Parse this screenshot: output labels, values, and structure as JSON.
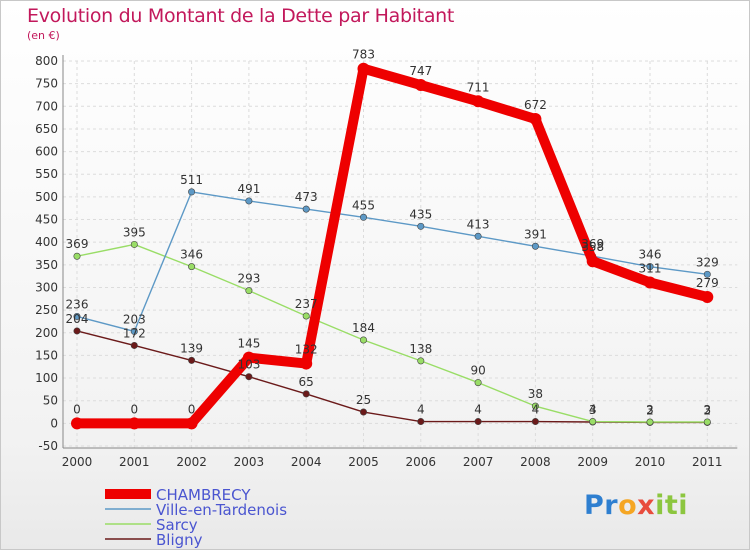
{
  "chart_data": {
    "type": "line",
    "title": "Evolution du Montant de la Dette par Habitant",
    "subtitle": "(en €)",
    "xlabel": "",
    "ylabel": "",
    "ylim": [
      -50,
      800
    ],
    "y_ticks": [
      -50,
      0,
      50,
      100,
      150,
      200,
      250,
      300,
      350,
      400,
      450,
      500,
      550,
      600,
      650,
      700,
      750,
      800
    ],
    "x": [
      "2000",
      "2001",
      "2002",
      "2003",
      "2004",
      "2005",
      "2006",
      "2007",
      "2008",
      "2009",
      "2010",
      "2011"
    ],
    "grid": true,
    "legend_position": "bottom-left",
    "series": [
      {
        "name": "Bligny",
        "color": "#6b1a1a",
        "values": [
          204,
          172,
          139,
          103,
          65,
          25,
          4,
          4,
          4,
          3,
          2,
          2
        ]
      },
      {
        "name": "Sarcy",
        "color": "#99dd66",
        "values": [
          369,
          395,
          346,
          293,
          237,
          184,
          138,
          90,
          38,
          4,
          3,
          3
        ]
      },
      {
        "name": "Ville-en-Tardenois",
        "color": "#5d99c6",
        "values": [
          236,
          203,
          511,
          491,
          473,
          455,
          435,
          413,
          391,
          369,
          346,
          329
        ]
      },
      {
        "name": "CHAMBRECY",
        "color": "#ee0000",
        "values": [
          0,
          0,
          0,
          145,
          132,
          783,
          747,
          711,
          672,
          358,
          311,
          279
        ]
      }
    ],
    "legend_order": [
      "CHAMBRECY",
      "Ville-en-Tardenois",
      "Sarcy",
      "Bligny"
    ]
  },
  "logo": {
    "parts": [
      "Pr",
      "o",
      "x",
      "iti"
    ]
  }
}
